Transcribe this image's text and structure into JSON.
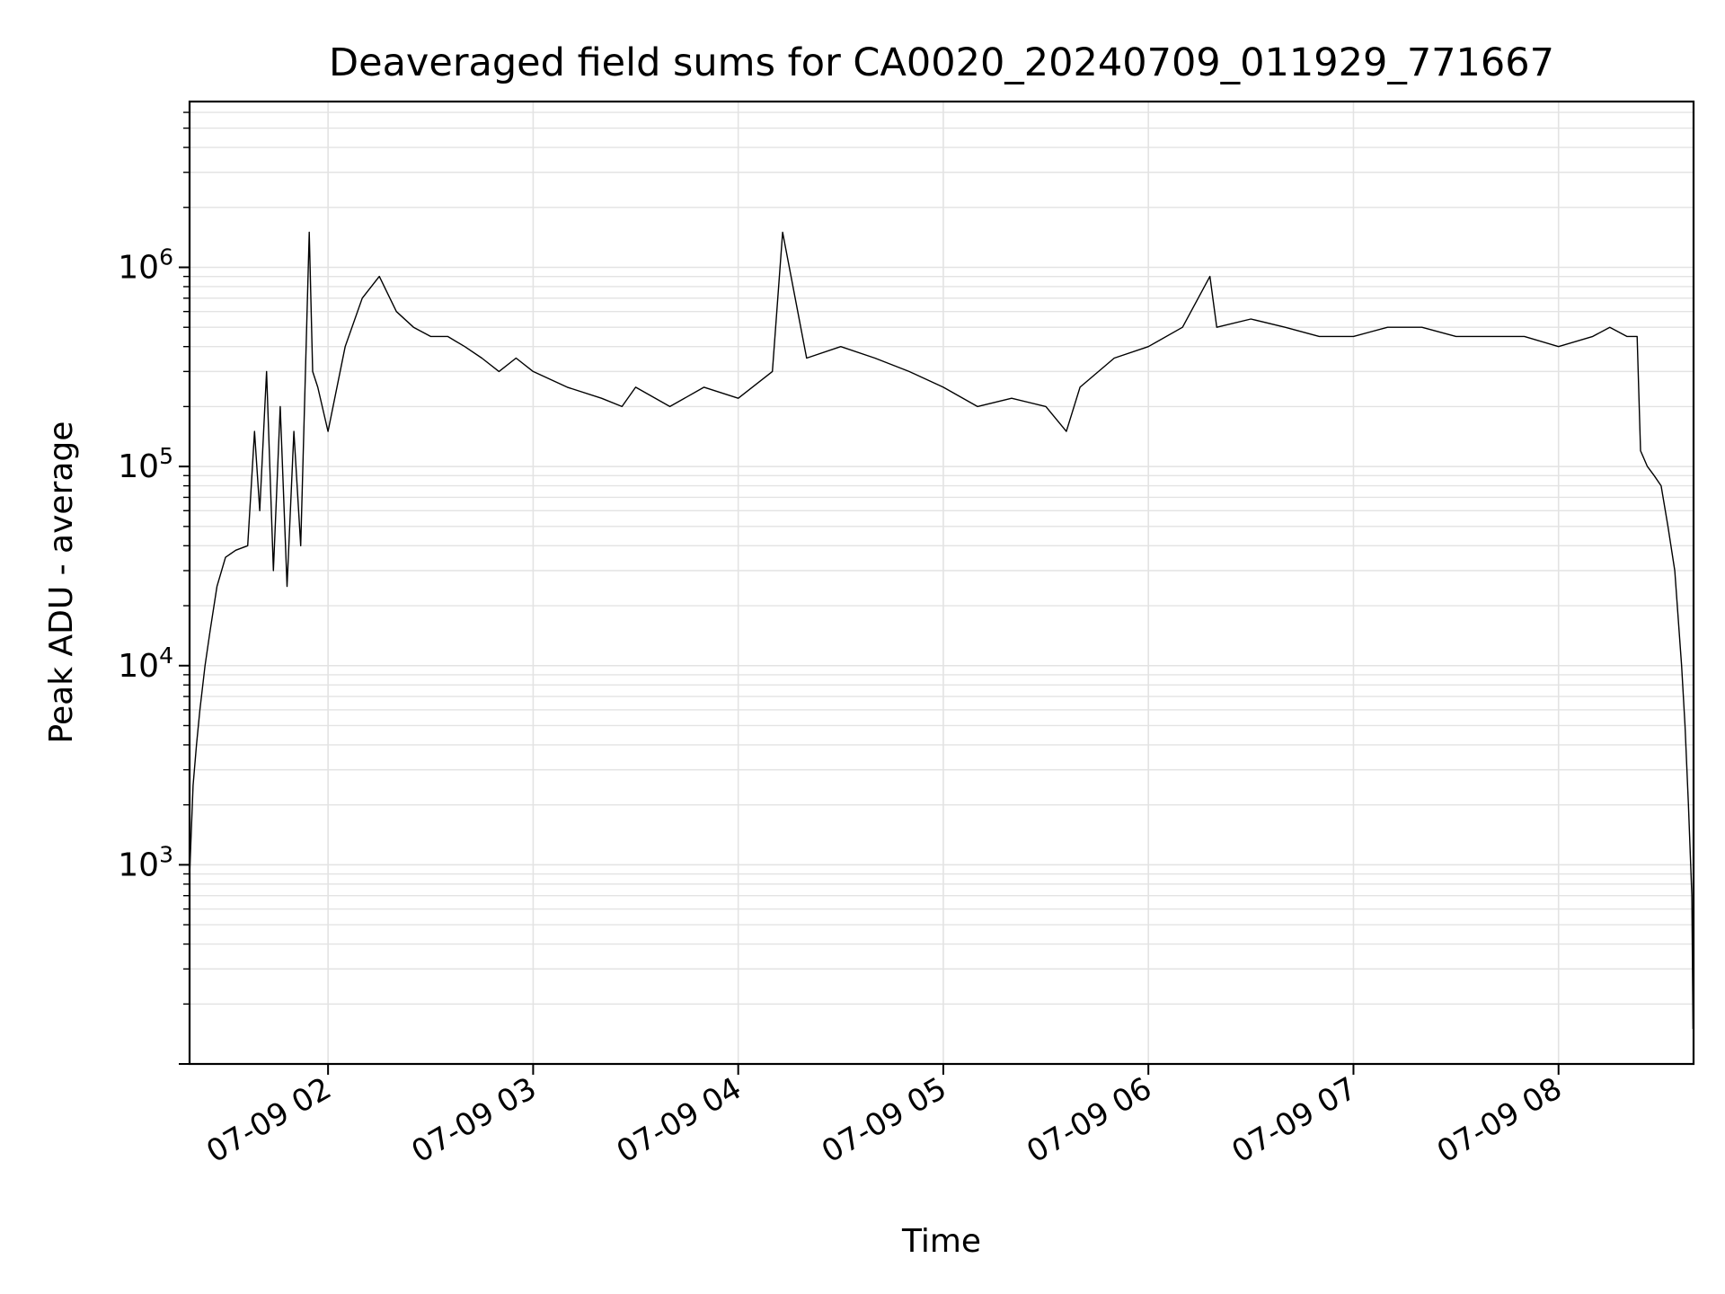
{
  "chart_data": {
    "type": "line",
    "title": "Deaveraged field sums for CA0020_20240709_011929_771667",
    "xlabel": "Time",
    "ylabel": "Peak ADU - average",
    "y_scale": "log",
    "ylim": [
      100,
      6800000
    ],
    "xlim": [
      "2024-07-09 01:19:29",
      "2024-07-09 08:39:30"
    ],
    "x_ticks": [
      {
        "value": "2024-07-09 02:00",
        "label": "07-09 02"
      },
      {
        "value": "2024-07-09 03:00",
        "label": "07-09 03"
      },
      {
        "value": "2024-07-09 04:00",
        "label": "07-09 04"
      },
      {
        "value": "2024-07-09 05:00",
        "label": "07-09 05"
      },
      {
        "value": "2024-07-09 06:00",
        "label": "07-09 06"
      },
      {
        "value": "2024-07-09 07:00",
        "label": "07-09 07"
      },
      {
        "value": "2024-07-09 08:00",
        "label": "07-09 08"
      }
    ],
    "y_ticks": [
      {
        "value": 1000,
        "base": "10",
        "exp": "3"
      },
      {
        "value": 10000,
        "base": "10",
        "exp": "4"
      },
      {
        "value": 100000,
        "base": "10",
        "exp": "5"
      },
      {
        "value": 1000000,
        "base": "10",
        "exp": "6"
      }
    ],
    "grid": true,
    "line_color": "#000000",
    "grid_color": "#e3e3e3",
    "series": [
      {
        "x": [
          "2024-07-09 01:19:30",
          "2024-07-09 01:20:30",
          "2024-07-09 01:21:30",
          "2024-07-09 01:22:30",
          "2024-07-09 01:24:00",
          "2024-07-09 01:25:30",
          "2024-07-09 01:27:30",
          "2024-07-09 01:30:00",
          "2024-07-09 01:33:00",
          "2024-07-09 01:36:30",
          "2024-07-09 01:38:30",
          "2024-07-09 01:40:00",
          "2024-07-09 01:42:00",
          "2024-07-09 01:44:00",
          "2024-07-09 01:46:00",
          "2024-07-09 01:48:00",
          "2024-07-09 01:50:00",
          "2024-07-09 01:52:00",
          "2024-07-09 01:54:30",
          "2024-07-09 01:55:30",
          "2024-07-09 01:57:00",
          "2024-07-09 02:00:00",
          "2024-07-09 02:05:00",
          "2024-07-09 02:10:00",
          "2024-07-09 02:15:00",
          "2024-07-09 02:20:00",
          "2024-07-09 02:25:00",
          "2024-07-09 02:30:00",
          "2024-07-09 02:35:00",
          "2024-07-09 02:40:00",
          "2024-07-09 02:45:00",
          "2024-07-09 02:50:00",
          "2024-07-09 02:55:00",
          "2024-07-09 03:00:00",
          "2024-07-09 03:10:00",
          "2024-07-09 03:20:00",
          "2024-07-09 03:26:00",
          "2024-07-09 03:30:00",
          "2024-07-09 03:40:00",
          "2024-07-09 03:50:00",
          "2024-07-09 04:00:00",
          "2024-07-09 04:10:00",
          "2024-07-09 04:13:00",
          "2024-07-09 04:20:00",
          "2024-07-09 04:30:00",
          "2024-07-09 04:40:00",
          "2024-07-09 04:50:00",
          "2024-07-09 05:00:00",
          "2024-07-09 05:10:00",
          "2024-07-09 05:20:00",
          "2024-07-09 05:30:00",
          "2024-07-09 05:36:00",
          "2024-07-09 05:40:00",
          "2024-07-09 05:50:00",
          "2024-07-09 06:00:00",
          "2024-07-09 06:10:00",
          "2024-07-09 06:18:00",
          "2024-07-09 06:20:00",
          "2024-07-09 06:30:00",
          "2024-07-09 06:40:00",
          "2024-07-09 06:50:00",
          "2024-07-09 07:00:00",
          "2024-07-09 07:10:00",
          "2024-07-09 07:20:00",
          "2024-07-09 07:30:00",
          "2024-07-09 07:40:00",
          "2024-07-09 07:50:00",
          "2024-07-09 08:00:00",
          "2024-07-09 08:10:00",
          "2024-07-09 08:15:00",
          "2024-07-09 08:20:00",
          "2024-07-09 08:23:00",
          "2024-07-09 08:24:00",
          "2024-07-09 08:26:00",
          "2024-07-09 08:28:00",
          "2024-07-09 08:30:00",
          "2024-07-09 08:32:00",
          "2024-07-09 08:34:00",
          "2024-07-09 08:36:00",
          "2024-07-09 08:37:00",
          "2024-07-09 08:38:00",
          "2024-07-09 08:39:00",
          "2024-07-09 08:39:20"
        ],
        "y": [
          900,
          2500,
          4000,
          6000,
          10000,
          15000,
          25000,
          35000,
          38000,
          40000,
          150000,
          60000,
          300000,
          30000,
          200000,
          25000,
          150000,
          40000,
          1500000,
          300000,
          250000,
          150000,
          400000,
          700000,
          900000,
          600000,
          500000,
          450000,
          450000,
          400000,
          350000,
          300000,
          350000,
          300000,
          250000,
          220000,
          200000,
          250000,
          200000,
          250000,
          220000,
          300000,
          1500000,
          350000,
          400000,
          350000,
          300000,
          250000,
          200000,
          220000,
          200000,
          150000,
          250000,
          350000,
          400000,
          500000,
          900000,
          500000,
          550000,
          500000,
          450000,
          450000,
          500000,
          500000,
          450000,
          450000,
          450000,
          400000,
          450000,
          500000,
          450000,
          450000,
          120000,
          100000,
          90000,
          80000,
          50000,
          30000,
          10000,
          5000,
          2000,
          700,
          150
        ]
      }
    ]
  }
}
